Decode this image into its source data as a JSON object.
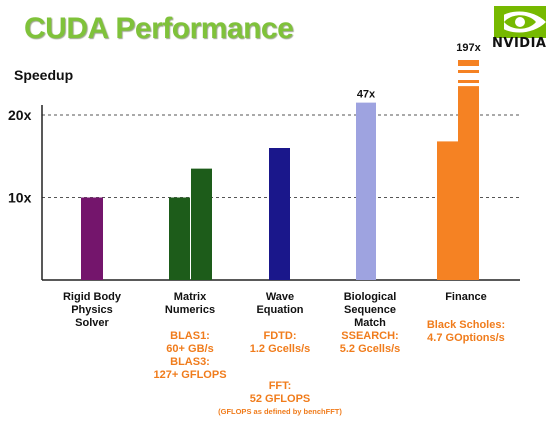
{
  "title": "CUDA Performance",
  "logo_word": "NVIDIA",
  "colors": {
    "title": "#7fc23a",
    "physics": "#74156c",
    "matrix": "#1d5c1a",
    "wave": "#1a178b",
    "bio": "#9ea3e0",
    "finance": "#f58223",
    "note": "#f07c1c"
  },
  "chart_data": {
    "type": "bar",
    "ylabel": "Speedup",
    "yticks": [
      {
        "value": 10,
        "label": "10x"
      },
      {
        "value": 20,
        "label": "20x"
      }
    ],
    "ylim": [
      0,
      24
    ],
    "grid": "dashed at 10x and 20x",
    "categories": [
      {
        "id": "physics",
        "label": [
          "Rigid Body",
          "Physics",
          "Solver"
        ],
        "bars": [
          {
            "value": 10,
            "color": "physics"
          }
        ],
        "notes": []
      },
      {
        "id": "matrix",
        "label": [
          "Matrix",
          "Numerics"
        ],
        "bars": [
          {
            "value": 10,
            "color": "matrix"
          },
          {
            "value": 13.5,
            "color": "matrix"
          }
        ],
        "notes": [
          [
            "BLAS1:",
            "60+ GB/s",
            "BLAS3:",
            "127+ GFLOPS"
          ]
        ]
      },
      {
        "id": "wave",
        "label": [
          "Wave",
          "Equation"
        ],
        "bars": [
          {
            "value": 16,
            "color": "wave"
          }
        ],
        "notes": [
          [
            "FDTD:",
            "1.2 Gcells/s"
          ],
          [
            "FFT:",
            "52 GFLOPS"
          ]
        ],
        "small_note": "(GFLOPS as defined by benchFFT)"
      },
      {
        "id": "bio",
        "label": [
          "Biological",
          "Sequence",
          "Match"
        ],
        "bars": [
          {
            "value": 47,
            "color": "bio",
            "label": "47x",
            "display_value": 21.5
          }
        ],
        "notes": [
          [
            "SSEARCH:",
            "5.2 Gcells/s"
          ]
        ]
      },
      {
        "id": "finance",
        "label": [
          "Finance"
        ],
        "bars": [
          {
            "value": 16.8,
            "color": "finance"
          },
          {
            "value": 197,
            "color": "finance",
            "label": "197x",
            "display_value": 23.5,
            "broken": true
          }
        ],
        "notes": [
          [
            "Black Scholes:",
            "4.7 GOptions/s"
          ]
        ]
      }
    ]
  }
}
